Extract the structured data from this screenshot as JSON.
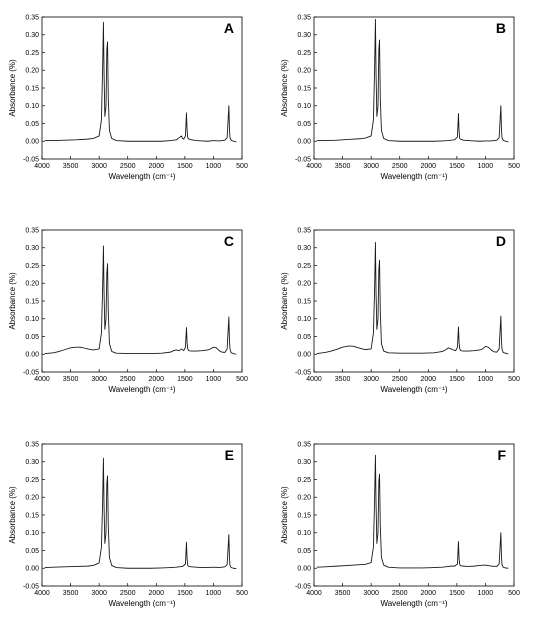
{
  "chart_data": [
    {
      "type": "line",
      "panel_label": "A",
      "xlabel": "Wavelength (cm⁻¹)",
      "ylabel": "Absorbance (%)",
      "xlim": [
        4000,
        500
      ],
      "ylim": [
        -0.05,
        0.35
      ],
      "x_ticks": [
        4000,
        3500,
        3000,
        2500,
        2000,
        1500,
        1000,
        500
      ],
      "y_ticks": [
        -0.05,
        0.0,
        0.05,
        0.1,
        0.15,
        0.2,
        0.25,
        0.3,
        0.35
      ],
      "y_tick_labels": [
        "-0.05",
        "0.00",
        "0.05",
        "0.10",
        "0.15",
        "0.20",
        "0.25",
        "0.30",
        "0.35"
      ],
      "x_tick_labels": [
        "4000",
        "3500",
        "3000",
        "2500",
        "2000",
        "1500",
        "1000",
        "500"
      ],
      "series": [
        {
          "x": [
            3950,
            3800,
            3600,
            3400,
            3200,
            3100,
            3000,
            2960,
            2940,
            2925,
            2915,
            2900,
            2880,
            2865,
            2853,
            2840,
            2820,
            2780,
            2700,
            2500,
            2300,
            2100,
            1900,
            1750,
            1650,
            1600,
            1560,
            1540,
            1520,
            1490,
            1472,
            1462,
            1450,
            1430,
            1380,
            1300,
            1200,
            1100,
            1000,
            900,
            800,
            760,
            730,
            720,
            710,
            690,
            650,
            600
          ],
          "y": [
            0.002,
            0.002,
            0.003,
            0.004,
            0.006,
            0.008,
            0.015,
            0.06,
            0.2,
            0.335,
            0.2,
            0.07,
            0.1,
            0.26,
            0.28,
            0.12,
            0.03,
            0.008,
            0.002,
            0.0,
            0.0,
            0.0,
            0.0,
            0.002,
            0.004,
            0.01,
            0.015,
            0.008,
            0.006,
            0.015,
            0.08,
            0.035,
            0.01,
            0.006,
            0.004,
            0.002,
            0.001,
            0.0,
            0.002,
            0.001,
            0.003,
            0.01,
            0.1,
            0.035,
            0.01,
            0.003,
            0.0,
            -0.002
          ]
        }
      ]
    },
    {
      "type": "line",
      "panel_label": "B",
      "xlabel": "Wavelength (cm⁻¹)",
      "ylabel": "Absorbance (%)",
      "xlim": [
        4000,
        500
      ],
      "ylim": [
        -0.05,
        0.35
      ],
      "x_ticks": [
        4000,
        3500,
        3000,
        2500,
        2000,
        1500,
        1000,
        500
      ],
      "y_ticks": [
        -0.05,
        0.0,
        0.05,
        0.1,
        0.15,
        0.2,
        0.25,
        0.3,
        0.35
      ],
      "y_tick_labels": [
        "-0.05",
        "0.00",
        "0.05",
        "0.10",
        "0.15",
        "0.20",
        "0.25",
        "0.30",
        "0.35"
      ],
      "x_tick_labels": [
        "4000",
        "3500",
        "3000",
        "2500",
        "2000",
        "1500",
        "1000",
        "500"
      ],
      "series": [
        {
          "x": [
            3950,
            3800,
            3600,
            3400,
            3200,
            3100,
            3000,
            2960,
            2940,
            2925,
            2915,
            2900,
            2880,
            2865,
            2853,
            2840,
            2820,
            2780,
            2700,
            2500,
            2300,
            2100,
            1900,
            1750,
            1650,
            1600,
            1540,
            1490,
            1472,
            1462,
            1450,
            1430,
            1380,
            1300,
            1200,
            1100,
            1000,
            900,
            800,
            760,
            730,
            720,
            710,
            690,
            650,
            600
          ],
          "y": [
            0.002,
            0.002,
            0.003,
            0.005,
            0.007,
            0.009,
            0.015,
            0.06,
            0.2,
            0.343,
            0.2,
            0.07,
            0.1,
            0.26,
            0.285,
            0.12,
            0.03,
            0.008,
            0.002,
            0.0,
            0.0,
            0.0,
            0.0,
            0.001,
            0.002,
            0.003,
            0.004,
            0.012,
            0.078,
            0.03,
            0.008,
            0.005,
            0.003,
            0.002,
            0.001,
            0.0,
            0.001,
            0.001,
            0.003,
            0.01,
            0.1,
            0.035,
            0.01,
            0.003,
            0.0,
            -0.002
          ]
        }
      ]
    },
    {
      "type": "line",
      "panel_label": "C",
      "xlabel": "Wavelength (cm⁻¹)",
      "ylabel": "Absorbance (%)",
      "xlim": [
        4000,
        500
      ],
      "ylim": [
        -0.05,
        0.35
      ],
      "x_ticks": [
        4000,
        3500,
        3000,
        2500,
        2000,
        1500,
        1000,
        500
      ],
      "y_ticks": [
        -0.05,
        0.0,
        0.05,
        0.1,
        0.15,
        0.2,
        0.25,
        0.3,
        0.35
      ],
      "y_tick_labels": [
        "-0.05",
        "0.00",
        "0.05",
        "0.10",
        "0.15",
        "0.20",
        "0.25",
        "0.30",
        "0.35"
      ],
      "x_tick_labels": [
        "4000",
        "3500",
        "3000",
        "2500",
        "2000",
        "1500",
        "1000",
        "500"
      ],
      "series": [
        {
          "x": [
            3950,
            3800,
            3700,
            3600,
            3500,
            3400,
            3350,
            3300,
            3200,
            3100,
            3000,
            2960,
            2940,
            2925,
            2915,
            2900,
            2880,
            2865,
            2853,
            2840,
            2820,
            2780,
            2700,
            2500,
            2300,
            2100,
            1900,
            1750,
            1700,
            1650,
            1600,
            1560,
            1520,
            1490,
            1472,
            1462,
            1450,
            1430,
            1380,
            1300,
            1200,
            1100,
            1050,
            1000,
            950,
            900,
            850,
            800,
            760,
            730,
            720,
            710,
            690,
            650,
            600
          ],
          "y": [
            0.002,
            0.004,
            0.008,
            0.013,
            0.018,
            0.02,
            0.02,
            0.019,
            0.015,
            0.012,
            0.015,
            0.06,
            0.18,
            0.305,
            0.18,
            0.07,
            0.1,
            0.23,
            0.255,
            0.12,
            0.03,
            0.008,
            0.003,
            0.002,
            0.002,
            0.002,
            0.003,
            0.006,
            0.01,
            0.012,
            0.01,
            0.015,
            0.01,
            0.02,
            0.075,
            0.035,
            0.015,
            0.01,
            0.009,
            0.009,
            0.01,
            0.012,
            0.015,
            0.02,
            0.018,
            0.01,
            0.006,
            0.005,
            0.015,
            0.105,
            0.04,
            0.015,
            0.004,
            0.002,
            0.0
          ]
        }
      ]
    },
    {
      "type": "line",
      "panel_label": "D",
      "xlabel": "Wavelength (cm⁻¹)",
      "ylabel": "Absorbance (%)",
      "xlim": [
        4000,
        500
      ],
      "ylim": [
        -0.05,
        0.35
      ],
      "x_ticks": [
        4000,
        3500,
        3000,
        2500,
        2000,
        1500,
        1000,
        500
      ],
      "y_ticks": [
        -0.05,
        0.0,
        0.05,
        0.1,
        0.15,
        0.2,
        0.25,
        0.3,
        0.35
      ],
      "y_tick_labels": [
        "-0.05",
        "0.00",
        "0.05",
        "0.10",
        "0.15",
        "0.20",
        "0.25",
        "0.30",
        "0.35"
      ],
      "x_tick_labels": [
        "4000",
        "3500",
        "3000",
        "2500",
        "2000",
        "1500",
        "1000",
        "500"
      ],
      "series": [
        {
          "x": [
            3950,
            3800,
            3700,
            3600,
            3500,
            3400,
            3350,
            3300,
            3200,
            3100,
            3000,
            2960,
            2940,
            2925,
            2915,
            2900,
            2880,
            2865,
            2853,
            2840,
            2820,
            2780,
            2700,
            2500,
            2300,
            2100,
            1900,
            1750,
            1700,
            1650,
            1600,
            1560,
            1520,
            1490,
            1472,
            1462,
            1450,
            1430,
            1380,
            1300,
            1200,
            1100,
            1050,
            1000,
            950,
            900,
            850,
            800,
            760,
            730,
            720,
            710,
            690,
            650,
            600
          ],
          "y": [
            0.002,
            0.005,
            0.009,
            0.014,
            0.02,
            0.023,
            0.023,
            0.022,
            0.017,
            0.013,
            0.015,
            0.06,
            0.18,
            0.315,
            0.18,
            0.07,
            0.1,
            0.24,
            0.265,
            0.12,
            0.03,
            0.009,
            0.004,
            0.003,
            0.003,
            0.003,
            0.004,
            0.008,
            0.012,
            0.018,
            0.015,
            0.012,
            0.01,
            0.02,
            0.077,
            0.035,
            0.015,
            0.01,
            0.009,
            0.009,
            0.01,
            0.012,
            0.015,
            0.022,
            0.02,
            0.012,
            0.007,
            0.006,
            0.015,
            0.107,
            0.04,
            0.015,
            0.005,
            0.003,
            0.001
          ]
        }
      ]
    },
    {
      "type": "line",
      "panel_label": "E",
      "xlabel": "Wavelength (cm⁻¹)",
      "ylabel": "Absorbance (%)",
      "xlim": [
        4000,
        500
      ],
      "ylim": [
        -0.05,
        0.35
      ],
      "x_ticks": [
        4000,
        3500,
        3000,
        2500,
        2000,
        1500,
        1000,
        500
      ],
      "y_ticks": [
        -0.05,
        0.0,
        0.05,
        0.1,
        0.15,
        0.2,
        0.25,
        0.3,
        0.35
      ],
      "y_tick_labels": [
        "-0.05",
        "0.00",
        "0.05",
        "0.10",
        "0.15",
        "0.20",
        "0.25",
        "0.30",
        "0.35"
      ],
      "x_tick_labels": [
        "4000",
        "3500",
        "3000",
        "2500",
        "2000",
        "1500",
        "1000",
        "500"
      ],
      "series": [
        {
          "x": [
            3950,
            3800,
            3600,
            3400,
            3200,
            3100,
            3000,
            2960,
            2940,
            2925,
            2915,
            2900,
            2880,
            2865,
            2853,
            2840,
            2820,
            2780,
            2700,
            2500,
            2300,
            2100,
            1900,
            1750,
            1650,
            1600,
            1540,
            1490,
            1472,
            1462,
            1450,
            1430,
            1380,
            1300,
            1200,
            1100,
            1000,
            900,
            800,
            760,
            730,
            720,
            710,
            690,
            650,
            600
          ],
          "y": [
            0.002,
            0.003,
            0.004,
            0.005,
            0.006,
            0.008,
            0.015,
            0.06,
            0.18,
            0.31,
            0.18,
            0.07,
            0.1,
            0.24,
            0.26,
            0.12,
            0.03,
            0.008,
            0.002,
            0.0,
            0.0,
            0.0,
            0.001,
            0.002,
            0.003,
            0.004,
            0.005,
            0.012,
            0.073,
            0.03,
            0.008,
            0.005,
            0.004,
            0.003,
            0.002,
            0.002,
            0.003,
            0.002,
            0.004,
            0.01,
            0.095,
            0.03,
            0.008,
            0.002,
            0.0,
            -0.001
          ]
        }
      ]
    },
    {
      "type": "line",
      "panel_label": "F",
      "xlabel": "Wavelength (cm⁻¹)",
      "ylabel": "Absorbance (%)",
      "xlim": [
        4000,
        500
      ],
      "ylim": [
        -0.05,
        0.35
      ],
      "x_ticks": [
        4000,
        3500,
        3000,
        2500,
        2000,
        1500,
        1000,
        500
      ],
      "y_ticks": [
        -0.05,
        0.0,
        0.05,
        0.1,
        0.15,
        0.2,
        0.25,
        0.3,
        0.35
      ],
      "y_tick_labels": [
        "-0.05",
        "0.00",
        "0.05",
        "0.10",
        "0.15",
        "0.20",
        "0.25",
        "0.30",
        "0.35"
      ],
      "x_tick_labels": [
        "4000",
        "3500",
        "3000",
        "2500",
        "2000",
        "1500",
        "1000",
        "500"
      ],
      "series": [
        {
          "x": [
            3950,
            3800,
            3600,
            3400,
            3200,
            3100,
            3000,
            2960,
            2940,
            2925,
            2915,
            2900,
            2880,
            2865,
            2853,
            2840,
            2820,
            2780,
            2700,
            2500,
            2300,
            2100,
            1900,
            1750,
            1650,
            1600,
            1540,
            1490,
            1472,
            1462,
            1450,
            1430,
            1380,
            1300,
            1200,
            1100,
            1000,
            900,
            800,
            760,
            730,
            720,
            710,
            690,
            650,
            600
          ],
          "y": [
            0.003,
            0.004,
            0.006,
            0.008,
            0.01,
            0.011,
            0.016,
            0.06,
            0.19,
            0.318,
            0.19,
            0.07,
            0.1,
            0.245,
            0.265,
            0.12,
            0.03,
            0.009,
            0.003,
            0.001,
            0.001,
            0.001,
            0.002,
            0.003,
            0.005,
            0.006,
            0.006,
            0.012,
            0.075,
            0.03,
            0.01,
            0.007,
            0.006,
            0.005,
            0.006,
            0.008,
            0.009,
            0.006,
            0.005,
            0.012,
            0.1,
            0.035,
            0.01,
            0.003,
            0.001,
            0.0
          ]
        }
      ]
    }
  ]
}
